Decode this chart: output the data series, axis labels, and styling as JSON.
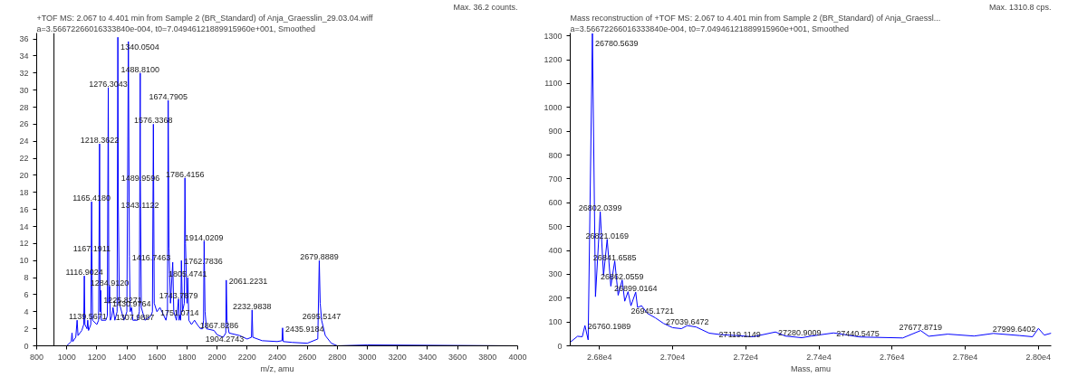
{
  "chart_data": [
    {
      "type": "line",
      "title": "+TOF MS: 2.067 to 4.401 min from Sample 2 (BR_Standard) of Anja_Graesslin_29.03.04.wiff",
      "subtitle": "a=3.56672266016333840e-004, t0=7.04946121889915960e+001, Smoothed",
      "xlabel": "m/z, amu",
      "grid": false,
      "xlim": [
        800,
        4000
      ],
      "xticks": [
        800,
        1000,
        1200,
        1400,
        1600,
        1800,
        2000,
        2200,
        2400,
        2600,
        2800,
        3000,
        3200,
        3400,
        3600,
        3800,
        4000
      ],
      "ylim": [
        0,
        36.7
      ],
      "yticks": [
        0,
        2,
        4,
        6,
        8,
        10,
        12,
        14,
        16,
        18,
        20,
        22,
        24,
        26,
        28,
        30,
        32,
        34,
        36
      ],
      "x": [
        800,
        1000,
        1030,
        1035,
        1040,
        1060,
        1069,
        1075,
        1100,
        1113,
        1116.9,
        1121,
        1135,
        1139.6,
        1145,
        1160,
        1165.4,
        1167.2,
        1172,
        1200,
        1212,
        1218.4,
        1222,
        1225.8,
        1230,
        1260,
        1270,
        1276.3,
        1280,
        1284.9,
        1290,
        1300,
        1308,
        1320,
        1335,
        1340.1,
        1343.1,
        1350,
        1380,
        1400,
        1410,
        1416.7,
        1422,
        1431,
        1440,
        1470,
        1483,
        1488.8,
        1490,
        1496,
        1520,
        1560,
        1570,
        1576.3,
        1582,
        1600,
        1620,
        1660,
        1670,
        1674.8,
        1680,
        1690,
        1705,
        1712,
        1730,
        1743.8,
        1747,
        1751.1,
        1758,
        1762.8,
        1770,
        1782,
        1786.4,
        1790,
        1800,
        1805.5,
        1812,
        1830,
        1850,
        1867.8,
        1890,
        1904.3,
        1910,
        1914,
        1920,
        1930,
        1980,
        2000,
        2040,
        2058,
        2061.2,
        2066,
        2080,
        2150,
        2200,
        2229,
        2233,
        2238,
        2300,
        2400,
        2432,
        2435.9,
        2440,
        2500,
        2600,
        2670,
        2679.9,
        2686,
        2695.5,
        2720,
        2760,
        2800,
        3000,
        4000
      ],
      "series": [
        {
          "color": "#0000ff",
          "values": [
            0,
            0,
            0.5,
            1.5,
            0.5,
            1,
            3,
            1.2,
            1.8,
            2.5,
            8.2,
            2.5,
            2,
            3,
            1.8,
            2.5,
            16.9,
            11,
            3,
            2.5,
            3,
            23.7,
            4,
            6.5,
            3,
            3,
            3.5,
            30.3,
            5,
            7,
            3,
            3.5,
            4.5,
            3,
            4,
            36.2,
            16.6,
            5,
            3,
            4,
            35.7,
            10.5,
            4,
            4.5,
            3,
            3,
            4,
            32,
            19.3,
            4.5,
            3,
            3.5,
            4,
            26,
            5,
            4,
            4.5,
            3,
            4,
            28.8,
            11.5,
            5,
            9.8,
            4,
            3,
            5.5,
            3,
            3.5,
            3,
            10,
            4,
            5,
            19.7,
            12,
            5,
            8,
            3,
            2.5,
            3,
            2.5,
            2,
            2,
            3,
            12.3,
            4,
            2,
            1.8,
            1.3,
            1,
            1.5,
            7.7,
            3,
            1.5,
            1.2,
            0.8,
            1,
            4.2,
            1,
            0.6,
            0.5,
            0.6,
            2.1,
            0.5,
            0.4,
            0.3,
            0.8,
            10,
            5,
            3,
            1.2,
            0.3,
            0,
            0.1,
            0
          ]
        }
      ],
      "ref_lines": [
        {
          "axis": "x",
          "value": 915,
          "color": "#000000"
        }
      ],
      "annotations": [
        "Max. 36.2 counts.",
        {
          "text": "1340.0504",
          "x": 1340.1,
          "y": 36.2
        },
        {
          "text": "1488.8100",
          "x": 1488.8,
          "y": 32
        },
        {
          "text": "1276.3043",
          "x": 1276.3,
          "y": 30.3
        },
        {
          "text": "1674.7905",
          "x": 1674.8,
          "y": 28.8
        },
        {
          "text": "1576.3368",
          "x": 1576.3,
          "y": 26
        },
        {
          "text": "1218.3622",
          "x": 1218.4,
          "y": 23.7
        },
        {
          "text": "1786.4156",
          "x": 1786.4,
          "y": 19.7
        },
        {
          "text": "1489.9596",
          "x": 1490,
          "y": 19.3
        },
        {
          "text": "1165.4180",
          "x": 1165.4,
          "y": 16.9
        },
        {
          "text": "1343.1122",
          "x": 1343.1,
          "y": 16.6
        },
        {
          "text": "1914.0209",
          "x": 1914,
          "y": 12.3
        },
        {
          "text": "1167.1911",
          "x": 1167.2,
          "y": 11
        },
        {
          "text": "1416.7463",
          "x": 1416.7,
          "y": 10.5
        },
        {
          "text": "1762.7836",
          "x": 1762.8,
          "y": 10
        },
        {
          "text": "2679.8889",
          "x": 2679.9,
          "y": 10
        },
        {
          "text": "1116.9024",
          "x": 1116.9,
          "y": 8.2
        },
        {
          "text": "1805.4741",
          "x": 1805.5,
          "y": 8
        },
        {
          "text": "2061.2231",
          "x": 2061.2,
          "y": 7.7
        },
        {
          "text": "1284.9120",
          "x": 1284.9,
          "y": 7
        },
        {
          "text": "1225.8271",
          "x": 1225.8,
          "y": 6.5
        },
        {
          "text": "1743.7879",
          "x": 1743.8,
          "y": 5.5
        },
        {
          "text": "1307.9887",
          "x": 1308,
          "y": 4.5
        },
        {
          "text": "1430.9764",
          "x": 1431,
          "y": 4.5
        },
        {
          "text": "2232.9838",
          "x": 2233,
          "y": 4.2
        },
        {
          "text": "1751.0714",
          "x": 1751.1,
          "y": 3.5
        },
        {
          "text": "1139.5671",
          "x": 1139.6,
          "y": 3
        },
        {
          "text": "2695.5147",
          "x": 2695.5,
          "y": 3
        },
        {
          "text": "1867.8286",
          "x": 1867.8,
          "y": 2.5
        },
        {
          "text": "1904.2743",
          "x": 1904.3,
          "y": 2
        },
        {
          "text": "2435.9184",
          "x": 2435.9,
          "y": 2.1
        }
      ]
    },
    {
      "type": "line",
      "title": "Mass reconstruction of  +TOF MS: 2.067 to 4.401 min from Sample 2 (BR_Standard) of Anja_Graessl...",
      "subtitle": "a=3.56672266016333840e-004, t0=7.04946121889915960e+001, Smoothed",
      "xlabel": "Mass, amu",
      "grid": false,
      "xlim": [
        26720,
        28035
      ],
      "xticks": [
        {
          "value": 26800,
          "label": "2.68e4"
        },
        {
          "value": 27000,
          "label": "2.70e4"
        },
        {
          "value": 27200,
          "label": "2.72e4"
        },
        {
          "value": 27400,
          "label": "2.74e4"
        },
        {
          "value": 27600,
          "label": "2.76e4"
        },
        {
          "value": 27800,
          "label": "2.78e4"
        },
        {
          "value": 28000,
          "label": "2.80e4"
        }
      ],
      "ylim": [
        0,
        1312
      ],
      "yticks": [
        0,
        100,
        200,
        300,
        400,
        500,
        600,
        700,
        800,
        900,
        1000,
        1100,
        1200,
        1300
      ],
      "x": [
        26720,
        26740,
        26753,
        26760.2,
        26769,
        26780.6,
        26789,
        26802,
        26811,
        26821,
        26831,
        26841.7,
        26851,
        26862,
        26869,
        26878,
        26886,
        26899,
        26904,
        26915,
        26931,
        26953,
        26975,
        27000,
        27024,
        27040,
        27064,
        27100,
        27131,
        27175,
        27220,
        27281,
        27308,
        27353,
        27379,
        27440,
        27512,
        27629,
        27678,
        27700,
        27752,
        27824,
        27877,
        27949,
        27984,
        28000,
        28016,
        28035
      ],
      "series": [
        {
          "color": "#0000ff",
          "values": [
            15,
            40,
            38,
            85,
            25,
            1310,
            206,
            562,
            295,
            447,
            250,
            356,
            212,
            276,
            187,
            227,
            168,
            225,
            161,
            168,
            136,
            117,
            94,
            76,
            72,
            85,
            79,
            53,
            47,
            43,
            38,
            58,
            41,
            34,
            41,
            54,
            37,
            33,
            64,
            40,
            49,
            41,
            52,
            43,
            38,
            73,
            45,
            53
          ]
        }
      ],
      "annotations": [
        "Max. 1310.8 cps.",
        {
          "text": "26780.5639",
          "x": 26780.6,
          "y": 1310
        },
        {
          "text": "26802.0399",
          "x": 26802,
          "y": 562
        },
        {
          "text": "26821.0169",
          "x": 26821,
          "y": 447
        },
        {
          "text": "26841.6585",
          "x": 26841.7,
          "y": 356
        },
        {
          "text": "26862.0559",
          "x": 26862,
          "y": 276
        },
        {
          "text": "26899.0164",
          "x": 26899,
          "y": 225
        },
        {
          "text": "26945.1721",
          "x": 26945,
          "y": 130
        },
        {
          "text": "26760.1989",
          "x": 26760.2,
          "y": 85
        },
        {
          "text": "27039.6472",
          "x": 27040,
          "y": 85
        },
        {
          "text": "27119.1149",
          "x": 27119,
          "y": 53
        },
        {
          "text": "27280.9009",
          "x": 27281,
          "y": 58
        },
        {
          "text": "27440.5475",
          "x": 27440,
          "y": 54
        },
        {
          "text": "27677.8719",
          "x": 27678,
          "y": 64
        },
        {
          "text": "27999.6402",
          "x": 28000,
          "y": 73
        }
      ]
    }
  ]
}
